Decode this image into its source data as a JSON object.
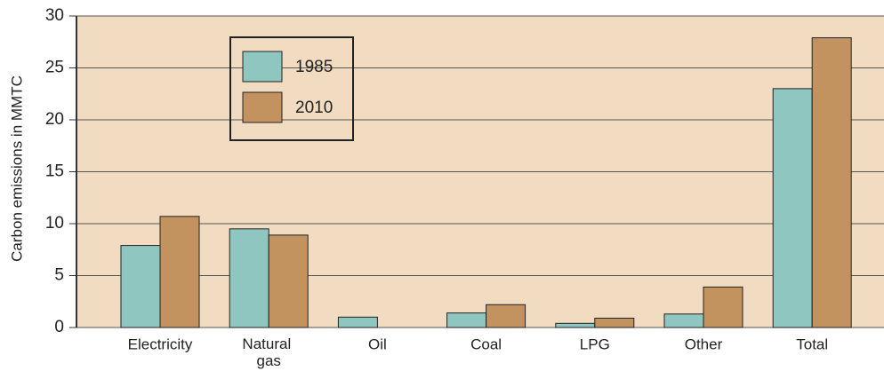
{
  "chart_data": {
    "type": "bar",
    "y_label": "Carbon emissions in MMTC",
    "categories": [
      "Electricity",
      "Natural gas",
      "Oil",
      "Coal",
      "LPG",
      "Other",
      "Total"
    ],
    "series": [
      {
        "name": "1985",
        "color": "#8fc7c0",
        "values": [
          7.9,
          9.5,
          1.0,
          1.4,
          0.4,
          1.3,
          23.0
        ]
      },
      {
        "name": "2010",
        "color": "#c2925f",
        "values": [
          10.7,
          8.9,
          0,
          2.2,
          0.9,
          3.9,
          27.9
        ]
      }
    ],
    "ylim": [
      0,
      30
    ],
    "yticks": [
      0,
      5,
      10,
      15,
      20,
      25,
      30
    ],
    "grid": true,
    "legend": "upper left"
  }
}
